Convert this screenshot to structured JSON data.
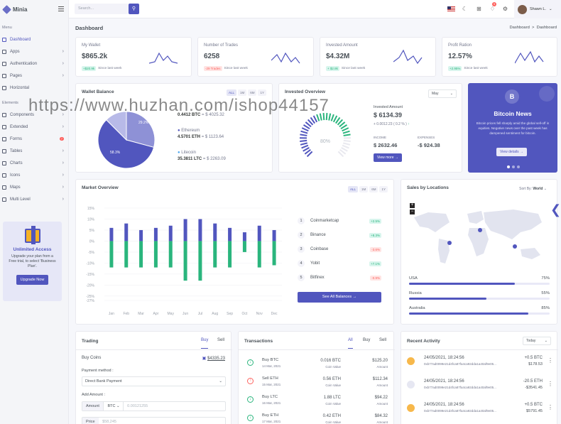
{
  "app": {
    "name": "Minia"
  },
  "sidebar": {
    "menu_title": "Menu",
    "elements_title": "Elements",
    "items": [
      {
        "label": "Dashboard",
        "icon": "home-icon",
        "chevron": false,
        "active": true
      },
      {
        "label": "Apps",
        "icon": "grid-icon",
        "chevron": true
      },
      {
        "label": "Authentication",
        "icon": "users-icon",
        "chevron": true
      },
      {
        "label": "Pages",
        "icon": "file-icon",
        "chevron": true
      },
      {
        "label": "Horizontal",
        "icon": "trello-icon",
        "chevron": false
      }
    ],
    "element_items": [
      {
        "label": "Components",
        "icon": "briefcase-icon",
        "chevron": true
      },
      {
        "label": "Extended",
        "icon": "gift-icon",
        "chevron": true
      },
      {
        "label": "Forms",
        "icon": "box-icon",
        "badge": "7"
      },
      {
        "label": "Tables",
        "icon": "sliders-icon",
        "chevron": true
      },
      {
        "label": "Charts",
        "icon": "pie-chart-icon",
        "chevron": true
      },
      {
        "label": "Icons",
        "icon": "cpu-icon",
        "chevron": true
      },
      {
        "label": "Maps",
        "icon": "map-icon",
        "chevron": true
      },
      {
        "label": "Multi Level",
        "icon": "share-icon",
        "chevron": true
      }
    ],
    "promo": {
      "title": "Unlimited Access",
      "text": "Upgrade your plan from a Free trial, to select 'Business Plan'.",
      "button": "Upgrade Now"
    }
  },
  "topbar": {
    "search_placeholder": "Search...",
    "notification_count": "5",
    "user_name": "Shawn L."
  },
  "page": {
    "title": "Dashboard",
    "breadcrumb": [
      "Dashboard",
      "Dashboard"
    ]
  },
  "stats": [
    {
      "label": "My Wallet",
      "value": "$865.2k",
      "delta": "+$20.9k",
      "trend": "up",
      "note": "Since last week"
    },
    {
      "label": "Number of Trades",
      "value": "6258",
      "delta": "-29 Trades",
      "trend": "down",
      "note": "Since last week"
    },
    {
      "label": "Invested Amount",
      "value": "$4.32M",
      "delta": "+ $2.8k",
      "trend": "up",
      "note": "Since last week"
    },
    {
      "label": "Profit Ration",
      "value": "12.57%",
      "delta": "+2.95%",
      "trend": "up",
      "note": "Since last week"
    }
  ],
  "wallet": {
    "title": "Wallet Balance",
    "ranges": [
      "ALL",
      "1M",
      "6M",
      "1Y"
    ],
    "pie_labels": [
      "29.2%",
      "58.3%"
    ],
    "pie_values": [
      29.2,
      58.3,
      12.5
    ],
    "coins": [
      {
        "value": "0.4412 BTC",
        "usd": "= $ 4025.32"
      },
      {
        "name": "Ethereum",
        "value": "4.5701 ETH",
        "usd": "= $ 1123.64"
      },
      {
        "name": "Litecoin",
        "value": "35.3811 LTC",
        "usd": "= $ 2263.09"
      }
    ]
  },
  "invested": {
    "title": "Invested Overview",
    "select": "May",
    "gauge_label": "80%",
    "gauge_value": 80,
    "amount_label": "Invested Amount",
    "amount": "$ 6134.39",
    "change": "+ 0.0012.23 ( 0.2 % )",
    "income_label": "INCOME",
    "income": "$ 2632.46",
    "expenses_label": "EXPENSES",
    "expenses": "-$ 924.38",
    "button": "View more"
  },
  "news": {
    "title": "Bitcoin News",
    "text": "Bitcoin prices fell sharply amid the global sell-off in equities. Negative news over the past week has dampened sentiment for bitcoin.",
    "button": "View details"
  },
  "market": {
    "title": "Market Overview",
    "ranges": [
      "ALL",
      "1M",
      "6M",
      "1Y"
    ],
    "exchanges": [
      {
        "rank": "1",
        "name": "Coinmarketcap",
        "change": "+2.5%",
        "trend": "up"
      },
      {
        "rank": "2",
        "name": "Binance",
        "change": "+8.3%",
        "trend": "up"
      },
      {
        "rank": "3",
        "name": "Coinbase",
        "change": "-3.6%",
        "trend": "down"
      },
      {
        "rank": "4",
        "name": "Yobit",
        "change": "+7.1%",
        "trend": "up"
      },
      {
        "rank": "5",
        "name": "Bitfinex",
        "change": "-0.9%",
        "trend": "down"
      }
    ],
    "button": "See All Balances"
  },
  "chart_data": {
    "type": "bar",
    "categories": [
      "Jan",
      "Feb",
      "Mar",
      "Apr",
      "May",
      "Jun",
      "Jul",
      "Aug",
      "Sep",
      "Oct",
      "Nov",
      "Dec"
    ],
    "series": [
      {
        "values": [
          6,
          8,
          5,
          6,
          7,
          10,
          10,
          8,
          6,
          4,
          7,
          5
        ]
      },
      {
        "values": [
          -12,
          -12,
          -12,
          -12,
          -12,
          -18,
          -18,
          -12,
          -12,
          -5,
          -12,
          -11
        ]
      }
    ],
    "yticks": [
      "15%",
      "10%",
      "5%",
      "0%",
      "-5%",
      "-10%",
      "-15%",
      "-20%",
      "-25%",
      "-27%"
    ],
    "ylim": [
      -27,
      15
    ],
    "colors": [
      "#5156be",
      "#2ab57d"
    ]
  },
  "sales": {
    "title": "Sales by Locations",
    "sort_label": "Sort By:",
    "sort_value": "World",
    "locations": [
      {
        "name": "USA",
        "percent": "75%",
        "value": 75
      },
      {
        "name": "Russia",
        "percent": "55%",
        "value": 55
      },
      {
        "name": "Australia",
        "percent": "85%",
        "value": 85
      }
    ]
  },
  "trading": {
    "title": "Trading",
    "tabs": [
      "Buy",
      "Sell"
    ],
    "buy_label": "Buy Coins",
    "balance": "$4335.23",
    "method_label": "Payment method :",
    "method": "Direct Bank Payment",
    "amount_label": "Add Amount :",
    "amount_prefix": "Amount",
    "currency": "BTC",
    "amount_placeholder": "0.00121255",
    "price_prefix": "Price",
    "price_placeholder": "$58,245"
  },
  "transactions": {
    "title": "Transactions",
    "tabs": [
      "All",
      "Buy",
      "Sell"
    ],
    "rows": [
      {
        "type": "Buy BTC",
        "date": "14 Mar, 2021",
        "coin": "0.016 BTC",
        "coin_label": "Coin Value",
        "amount": "$125.20",
        "amount_label": "Amount",
        "dir": "in"
      },
      {
        "type": "Sell ETH",
        "date": "15 Mar, 2021",
        "coin": "0.56 ETH",
        "coin_label": "Coin Value",
        "amount": "$112.34",
        "amount_label": "Amount",
        "dir": "out"
      },
      {
        "type": "Buy LTC",
        "date": "16 Mar, 2021",
        "coin": "1.88 LTC",
        "coin_label": "Coin Value",
        "amount": "$94.22",
        "amount_label": "Amount",
        "dir": "in"
      },
      {
        "type": "Buy ETH",
        "date": "17 Mar, 2021",
        "coin": "0.42 ETH",
        "coin_label": "Coin Value",
        "amount": "$84.32",
        "amount_label": "Amount",
        "dir": "in"
      }
    ]
  },
  "activity": {
    "title": "Recent Activity",
    "select": "Today",
    "rows": [
      {
        "date": "24/05/2021, 18:24:56",
        "hash": "0xb77ad0099e21d4fca87fa4ca92dda1a40af9e05...",
        "amount": "+0.5 BTC",
        "usd": "$178.53",
        "coin": "btc"
      },
      {
        "date": "24/05/2021, 18:24:56",
        "hash": "0xb77ad0099e21d4fca87fa4ca92dda1a40af9e05...",
        "amount": "-20.5 ETH",
        "usd": "-$3541.45",
        "coin": "eth"
      },
      {
        "date": "24/05/2021, 18:24:56",
        "hash": "0xb77ad0099e21d4fca87fa4ca92dda1a40af9e05...",
        "amount": "+0.5 BTC",
        "usd": "$5791.45",
        "coin": "btc"
      },
      {
        "date": "24/05/2021, 18:24:56",
        "hash": "",
        "amount": "+0.5 BTC",
        "usd": "",
        "coin": "btc"
      }
    ]
  },
  "watermark": "https://www.huzhan.com/ishop44157",
  "colors": {
    "primary": "#5156be",
    "success": "#2ab57d",
    "danger": "#fd625e",
    "warning": "#f5b225"
  }
}
